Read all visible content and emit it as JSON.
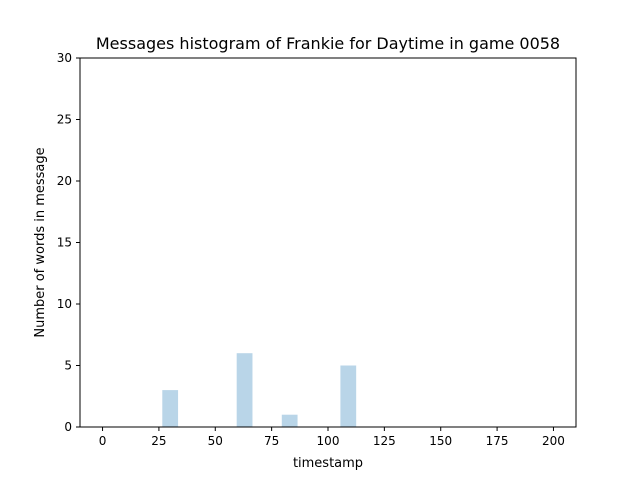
{
  "chart_data": {
    "type": "bar",
    "title": "Messages histogram of Frankie for Daytime in game 0058",
    "xlabel": "timestamp",
    "ylabel": "Number of words in message",
    "xlim": [
      -10,
      210
    ],
    "ylim": [
      0,
      30
    ],
    "xticks": [
      0,
      25,
      50,
      75,
      100,
      125,
      150,
      175,
      200
    ],
    "yticks": [
      0,
      5,
      10,
      15,
      20,
      25,
      30
    ],
    "bar_width": 7,
    "bar_color": "#b9d5e8",
    "grid": false,
    "bars": [
      {
        "x": 30,
        "value": 3
      },
      {
        "x": 63,
        "value": 6
      },
      {
        "x": 83,
        "value": 1
      },
      {
        "x": 109,
        "value": 5
      }
    ]
  }
}
